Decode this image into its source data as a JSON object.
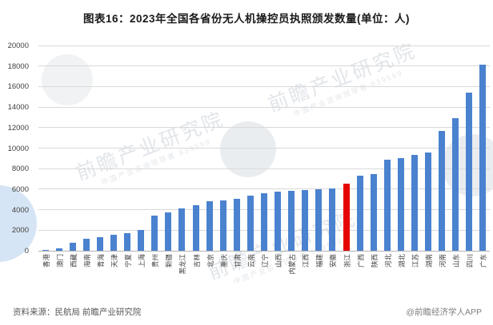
{
  "title": "图表16：2023年全国各省份无人机操控员执照颁发数量(单位：人)",
  "chart_data": {
    "type": "bar",
    "title": "2023年全国各省份无人机操控员执照颁发数量",
    "unit": "人",
    "categories": [
      "香港",
      "澳门",
      "西藏",
      "海南",
      "青海",
      "天津",
      "宁夏",
      "上海",
      "贵州",
      "新疆",
      "黑龙江",
      "吉林",
      "北京",
      "重庆",
      "甘肃",
      "云南",
      "辽宁",
      "山西",
      "内蒙古",
      "江西",
      "福建",
      "安徽",
      "浙江",
      "广西",
      "陕西",
      "河北",
      "湖北",
      "江苏",
      "湖南",
      "河南",
      "山东",
      "四川",
      "广东"
    ],
    "values": [
      100,
      200,
      750,
      1200,
      1300,
      1550,
      1700,
      2000,
      3400,
      3700,
      4150,
      4450,
      4850,
      4900,
      5050,
      5400,
      5600,
      5750,
      5800,
      5900,
      6000,
      6050,
      6500,
      7300,
      7450,
      8900,
      9050,
      9350,
      9550,
      11700,
      12900,
      15400,
      18100
    ],
    "highlight": {
      "category": "浙江",
      "index": 22,
      "color": "#e60505"
    },
    "bar_color": "#4a82cf",
    "grid_color": "#d9d9d9",
    "ylim": [
      0,
      20000
    ],
    "ytick_step": 2000,
    "legend": [],
    "grid": "horizontal"
  },
  "footer": {
    "source": "资料来源：民航局 前瞻产业研究院",
    "credit": "@前瞻经济学人APP"
  },
  "watermark": {
    "brand": "前瞻产业研究院",
    "tagline": "中国产业咨询领导者",
    "digits": "839599"
  }
}
